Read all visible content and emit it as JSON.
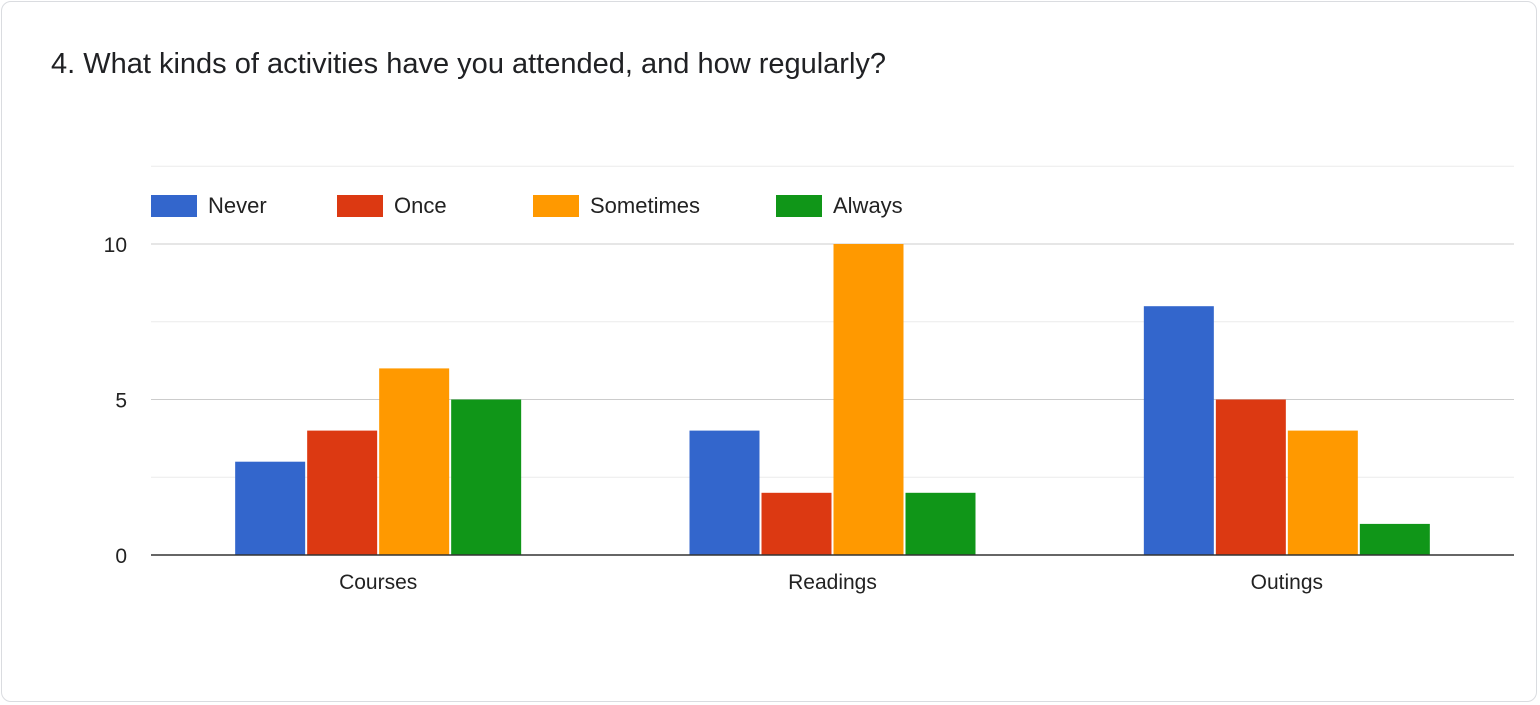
{
  "question": "4. What kinds of activities have you attended, and how regularly?",
  "chart_data": {
    "type": "bar",
    "title": "4. What kinds of activities have you attended, and how regularly?",
    "categories": [
      "Courses",
      "Readings",
      "Outings"
    ],
    "series": [
      {
        "name": "Never",
        "color": "#3366cc",
        "values": [
          3,
          4,
          8
        ]
      },
      {
        "name": "Once",
        "color": "#dc3912",
        "values": [
          4,
          2,
          5
        ]
      },
      {
        "name": "Sometimes",
        "color": "#ff9900",
        "values": [
          6,
          10,
          4
        ]
      },
      {
        "name": "Always",
        "color": "#109618",
        "values": [
          5,
          2,
          1
        ]
      }
    ],
    "ylim": [
      0,
      12.5
    ],
    "yticks": [
      0,
      5,
      10
    ],
    "xlabel": "",
    "ylabel": "",
    "grid": true,
    "legend": "top"
  }
}
